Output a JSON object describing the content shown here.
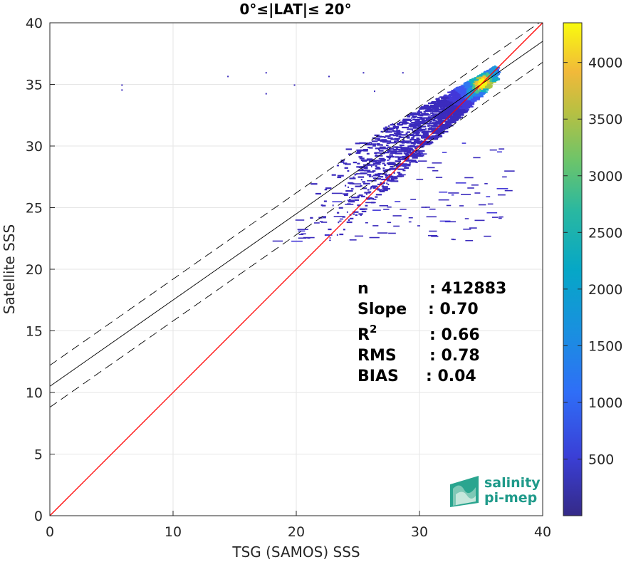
{
  "chart_data": {
    "type": "heatmap",
    "title": "0°≤|LAT|≤ 20°",
    "xlabel": "TSG (SAMOS) SSS",
    "ylabel": "Satellite SSS",
    "xlim": [
      0,
      40
    ],
    "ylim": [
      0,
      40
    ],
    "xticks": [
      "0",
      "10",
      "20",
      "30",
      "40"
    ],
    "yticks": [
      "0",
      "5",
      "10",
      "15",
      "20",
      "25",
      "30",
      "35",
      "40"
    ],
    "grid": true,
    "colormap": "parula",
    "colorbar": {
      "range": [
        0,
        4350
      ],
      "ticks": [
        "500",
        "1000",
        "1500",
        "2000",
        "2500",
        "3000",
        "3500",
        "4000"
      ]
    },
    "reference_line": {
      "label": "1:1",
      "color": "#ff0000",
      "x": [
        0,
        40
      ],
      "y": [
        0,
        40
      ]
    },
    "regression_line": {
      "color": "#000000",
      "style": "solid",
      "intercept": 10.5,
      "slope": 0.7
    },
    "confidence_lines": [
      {
        "style": "dashed",
        "color": "#000000",
        "intercept": 12.2,
        "slope": 0.7
      },
      {
        "style": "dashed",
        "color": "#000000",
        "intercept": 8.8,
        "slope": 0.7
      }
    ],
    "density_core": {
      "x": 35,
      "y": 35.2,
      "peak_count": 4300
    },
    "stats": [
      {
        "label": "n",
        "value": ": 412883"
      },
      {
        "label": "Slope",
        "value": ": 0.70"
      },
      {
        "label": "R",
        "sup": "2",
        "value": ": 0.66"
      },
      {
        "label": "RMS",
        "value": ": 0.78"
      },
      {
        "label": "BIAS",
        "value": ": 0.04"
      }
    ]
  },
  "logo": {
    "line1": "salinity",
    "line2": "pi-mep",
    "color": "#1f9a8a"
  }
}
